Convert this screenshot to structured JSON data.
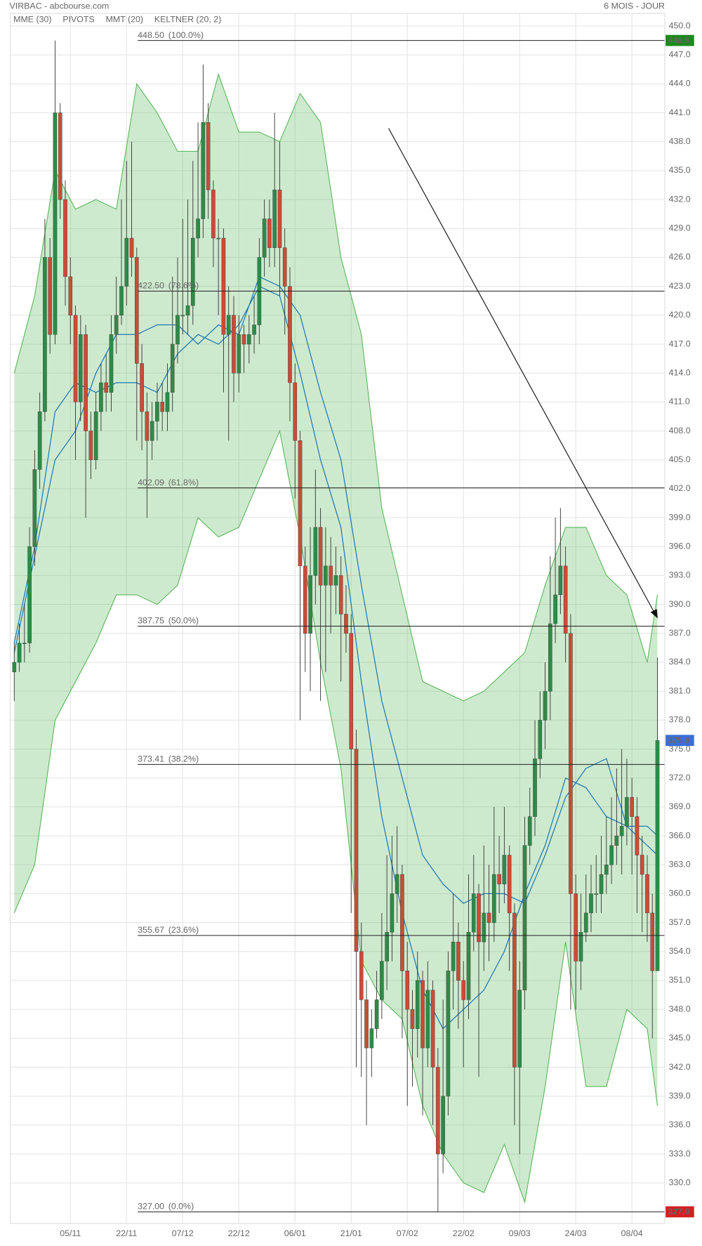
{
  "chart_data": {
    "type": "candlestick",
    "title": "VIRBAC - abcbourse.com",
    "subtitle": "6 MOIS - JOUR",
    "categories": [
      null,
      null,
      null,
      null,
      null,
      null,
      null,
      null,
      null,
      null,
      null,
      "05/11",
      null,
      null,
      null,
      null,
      null,
      null,
      null,
      null,
      null,
      null,
      "22/11",
      null,
      null,
      null,
      null,
      null,
      null,
      null,
      null,
      null,
      null,
      "07/12",
      null,
      null,
      null,
      null,
      null,
      null,
      null,
      null,
      null,
      null,
      "22/12",
      null,
      null,
      null,
      null,
      null,
      null,
      null,
      null,
      null,
      null,
      "06/01",
      null,
      null,
      null,
      null,
      null,
      null,
      null,
      null,
      null,
      null,
      "21/01",
      null,
      null,
      null,
      null,
      null,
      null,
      null,
      null,
      null,
      null,
      "07/02",
      null,
      null,
      null,
      null,
      null,
      null,
      null,
      null,
      null,
      null,
      "22/02",
      null,
      null,
      null,
      null,
      null,
      null,
      null,
      null,
      null,
      null,
      "09/03",
      null,
      null,
      null,
      null,
      null,
      null,
      null,
      null,
      null,
      null,
      "24/03",
      null,
      null,
      null,
      null,
      null,
      null,
      null,
      null,
      null,
      null,
      "08/04",
      null,
      null,
      null,
      null,
      null
    ],
    "open": [
      383,
      384,
      386,
      386,
      396,
      404,
      410,
      426,
      418,
      441,
      432,
      424,
      420,
      411,
      418,
      408,
      405,
      410,
      413,
      412,
      418,
      420,
      423,
      428,
      426,
      415,
      410,
      407,
      409,
      411,
      410,
      412,
      417,
      420,
      420,
      421,
      428,
      430,
      440,
      433,
      428,
      428,
      418,
      420,
      414,
      418,
      417,
      418,
      419,
      426,
      430,
      427,
      433,
      427,
      423,
      413,
      407,
      394,
      387,
      393,
      398,
      392,
      394,
      392,
      393,
      389,
      387,
      375,
      354,
      349,
      344,
      346,
      349,
      353,
      356,
      360,
      362,
      352,
      348,
      346,
      351,
      344,
      350,
      342,
      333,
      339,
      352,
      355,
      351,
      349,
      356,
      360,
      355,
      358,
      357,
      362,
      361,
      364,
      358,
      342,
      350,
      365,
      368,
      374,
      378,
      381,
      388,
      391,
      394,
      387,
      360,
      353,
      356,
      358,
      360,
      360,
      362,
      363,
      365,
      366,
      367,
      370,
      368,
      364,
      362,
      358,
      352
    ],
    "high": [
      386,
      388,
      390,
      398,
      406,
      412,
      430,
      428,
      448.5,
      442,
      434,
      426,
      421,
      420,
      419,
      410,
      412,
      415,
      416,
      420,
      424,
      432,
      436,
      438,
      427,
      417,
      412,
      411,
      413,
      413,
      415,
      424,
      426,
      430,
      432,
      436,
      440,
      446,
      442,
      434,
      430,
      429,
      423,
      422,
      420,
      419,
      420,
      422,
      428,
      432,
      432,
      441,
      438,
      429,
      425,
      415,
      408,
      396,
      398,
      404,
      400,
      398,
      397,
      396,
      395,
      392,
      389,
      377,
      357,
      351,
      348,
      352,
      358,
      364,
      366,
      367,
      363,
      355,
      350,
      354,
      352,
      353,
      351,
      344,
      349,
      354,
      360,
      357,
      353,
      362,
      364,
      361,
      365,
      363,
      369,
      366,
      369,
      365,
      359,
      353,
      368,
      371,
      378,
      381,
      384,
      395,
      399,
      400,
      396,
      389,
      362,
      360,
      362,
      363,
      364,
      366,
      368,
      370,
      373,
      375,
      374,
      372,
      370,
      366,
      364,
      360,
      384.5
    ],
    "low": [
      380,
      383,
      384,
      385,
      394,
      402,
      409,
      416,
      417,
      430,
      421,
      417,
      405,
      409,
      399,
      403,
      404,
      408,
      410,
      410,
      416,
      419,
      421,
      424,
      407,
      406,
      399,
      405,
      407,
      408,
      408,
      410,
      415,
      418,
      418,
      419,
      426,
      428,
      430,
      425,
      420,
      412,
      407,
      411,
      412,
      414,
      415,
      416,
      417,
      424,
      425,
      425,
      422,
      418,
      409,
      401,
      378,
      383,
      381,
      390,
      380,
      383,
      387,
      389,
      382,
      385,
      358,
      342,
      341,
      336,
      341,
      345,
      347,
      350,
      353,
      357,
      345,
      338,
      340,
      343,
      337,
      342,
      336,
      327,
      331,
      337,
      348,
      346,
      342,
      347,
      354,
      341,
      352,
      353,
      355,
      358,
      359,
      352,
      336,
      333,
      348,
      363,
      366,
      372,
      375,
      378,
      386,
      389,
      384,
      348,
      348,
      350,
      355,
      356,
      358,
      358,
      360,
      361,
      363,
      362,
      365,
      362,
      358,
      356,
      355,
      345,
      352
    ],
    "close": [
      384,
      386,
      386,
      396,
      404,
      410,
      426,
      418,
      441,
      432,
      424,
      420,
      411,
      418,
      408,
      405,
      410,
      413,
      412,
      418,
      420,
      423,
      428,
      426,
      415,
      410,
      407,
      409,
      411,
      410,
      412,
      417,
      420,
      420,
      421,
      428,
      430,
      440,
      433,
      428,
      428,
      418,
      420,
      414,
      418,
      417,
      418,
      419,
      426,
      430,
      427,
      433,
      427,
      423,
      413,
      407,
      394,
      387,
      393,
      398,
      392,
      394,
      392,
      393,
      389,
      387,
      375,
      354,
      349,
      344,
      346,
      349,
      353,
      356,
      360,
      362,
      352,
      348,
      346,
      351,
      344,
      350,
      342,
      333,
      339,
      352,
      355,
      351,
      349,
      356,
      360,
      355,
      358,
      357,
      362,
      361,
      364,
      358,
      342,
      350,
      365,
      368,
      374,
      378,
      381,
      388,
      391,
      394,
      387,
      360,
      353,
      356,
      358,
      360,
      360,
      362,
      363,
      365,
      366,
      367,
      370,
      368,
      364,
      362,
      358,
      352,
      375.9
    ],
    "up_color": "#2e8b47",
    "down_color": "#cc4b37",
    "series": [
      {
        "name": "MME (30)",
        "color": "#1f77b4",
        "type": "line",
        "x": [
          0,
          4,
          8,
          12,
          16,
          20,
          24,
          28,
          32,
          36,
          40,
          44,
          48,
          52,
          56,
          60,
          64,
          68,
          72,
          76,
          80,
          84,
          88,
          92,
          96,
          100,
          104,
          108,
          112,
          116,
          120,
          124,
          126
        ],
        "values": [
          386,
          396,
          410,
          413,
          412,
          413,
          413,
          412,
          416,
          418,
          417,
          419,
          423,
          422,
          414,
          405,
          398,
          382,
          368,
          358,
          350,
          346,
          348,
          350,
          354,
          360,
          365,
          372,
          371,
          368,
          367,
          365,
          364
        ]
      },
      {
        "name": "PIVOTS",
        "color": "#555555"
      },
      {
        "name": "MMT (20)",
        "color": "#1f77b4",
        "type": "line",
        "x": [
          0,
          4,
          8,
          12,
          16,
          20,
          24,
          28,
          32,
          36,
          40,
          44,
          48,
          52,
          56,
          60,
          64,
          68,
          72,
          76,
          80,
          84,
          88,
          92,
          96,
          100,
          104,
          108,
          112,
          116,
          120,
          124,
          126
        ],
        "values": [
          385,
          395,
          405,
          408,
          414,
          418,
          418,
          419,
          419,
          417,
          419,
          418,
          424,
          423,
          420,
          412,
          405,
          392,
          380,
          372,
          364,
          361,
          359,
          360,
          360,
          359,
          364,
          370,
          373,
          374,
          367,
          367,
          366
        ]
      },
      {
        "name": "KELTNER (20, 2)",
        "color": "#5cb85c",
        "type": "band",
        "x": [
          0,
          4,
          8,
          12,
          16,
          20,
          24,
          28,
          32,
          36,
          40,
          44,
          48,
          52,
          56,
          60,
          64,
          68,
          72,
          76,
          80,
          84,
          88,
          92,
          96,
          100,
          104,
          108,
          112,
          116,
          120,
          124,
          126
        ],
        "upper": [
          414,
          422,
          435,
          431,
          432,
          431,
          444,
          441,
          437,
          437,
          445,
          439,
          439,
          438,
          443,
          440,
          426,
          418,
          400,
          391,
          382,
          381,
          380,
          381,
          383,
          385,
          392,
          398,
          398,
          393,
          391,
          384,
          391
        ],
        "lower": [
          358,
          363,
          378,
          382,
          386,
          391,
          391,
          390,
          392,
          399,
          397,
          398,
          403,
          408,
          397,
          384,
          373,
          353,
          349,
          347,
          338,
          333,
          330,
          329,
          334,
          328,
          340,
          355,
          340,
          340,
          348,
          346,
          338
        ]
      }
    ],
    "levels": [
      {
        "value": 448.5,
        "label": "448.50",
        "ratio": "(100.0%)"
      },
      {
        "value": 422.5,
        "label": "422.50",
        "ratio": "(78.6%)"
      },
      {
        "value": 402.09,
        "label": "402.09",
        "ratio": "(61.8%)"
      },
      {
        "value": 387.75,
        "label": "387.75",
        "ratio": "(50.0%)"
      },
      {
        "value": 373.41,
        "label": "373.41",
        "ratio": "(38.2%)"
      },
      {
        "value": 355.67,
        "label": "355.67",
        "ratio": "(23.6%)"
      },
      {
        "value": 327,
        "label": "327.00",
        "ratio": "(0.0%)"
      }
    ],
    "price_tags": [
      {
        "value": 448.5,
        "color": "#1a8a1a"
      },
      {
        "value": 375.9,
        "color": "#3a6fd8"
      },
      {
        "value": 327,
        "label": "327.0",
        "color": "#d42020"
      }
    ],
    "ylim": [
      325.8,
      451.3
    ],
    "yticks": [
      {
        "value": 330,
        "label": "330.0"
      },
      {
        "value": 333,
        "label": "333.0"
      },
      {
        "value": 336,
        "label": "336.0"
      },
      {
        "value": 339,
        "label": "339.0"
      },
      {
        "value": 342,
        "label": "342.0"
      },
      {
        "value": 345,
        "label": "345.0"
      },
      {
        "value": 348,
        "label": "348.0"
      },
      {
        "value": 351,
        "label": "351.0"
      },
      {
        "value": 354,
        "label": "354.0"
      },
      {
        "value": 357,
        "label": "357.0"
      },
      {
        "value": 360,
        "label": "360.0"
      },
      {
        "value": 363,
        "label": "363.0"
      },
      {
        "value": 366,
        "label": "366.0"
      },
      {
        "value": 369,
        "label": "369.0"
      },
      {
        "value": 372,
        "label": "372.0"
      },
      {
        "value": 375,
        "label": "375.0"
      },
      {
        "value": 378,
        "label": "378.0"
      },
      {
        "value": 381,
        "label": "381.0"
      },
      {
        "value": 384,
        "label": "384.0"
      },
      {
        "value": 387,
        "label": "387.0"
      },
      {
        "value": 390,
        "label": "390.0"
      },
      {
        "value": 393,
        "label": "393.0"
      },
      {
        "value": 396,
        "label": "396.0"
      },
      {
        "value": 399,
        "label": "399.0"
      },
      {
        "value": 402,
        "label": "402.0"
      },
      {
        "value": 405,
        "label": "405.0"
      },
      {
        "value": 408,
        "label": "408.0"
      },
      {
        "value": 411,
        "label": "411.0"
      },
      {
        "value": 414,
        "label": "414.0"
      },
      {
        "value": 417,
        "label": "417.0"
      },
      {
        "value": 420,
        "label": "420.0"
      },
      {
        "value": 423,
        "label": "423.0"
      },
      {
        "value": 426,
        "label": "426.0"
      },
      {
        "value": 429,
        "label": "429.0"
      },
      {
        "value": 432,
        "label": "432.0"
      },
      {
        "value": 435,
        "label": "435.0"
      },
      {
        "value": 438,
        "label": "438.0"
      },
      {
        "value": 441,
        "label": "441.0"
      },
      {
        "value": 444,
        "label": "444.0"
      },
      {
        "value": 447,
        "label": "447.0"
      },
      {
        "value": 450,
        "label": "450.0"
      }
    ],
    "grid": true
  }
}
